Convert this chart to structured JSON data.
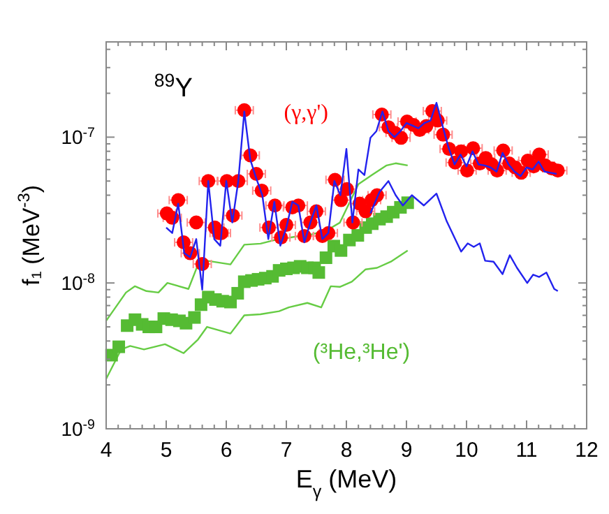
{
  "chart_data": {
    "type": "scatter",
    "xlabel": "E$_{γ}$ (MeV)",
    "ylabel": "f₁ (MeV$^{-3}$)",
    "annotations": [
      "$^{89}$Y"
    ],
    "log": "y",
    "grid": false,
    "xlim": [
      4,
      12
    ],
    "ylim": [
      1e-09,
      4.5e-07
    ],
    "xticks": [
      4,
      {
        "value": 4.2,
        "label": null
      },
      {
        "value": 4.4,
        "label": null
      },
      {
        "value": 4.6,
        "label": null
      },
      {
        "value": 4.8,
        "label": null
      },
      5,
      {
        "value": 5.2,
        "label": null
      },
      {
        "value": 5.4,
        "label": null
      },
      {
        "value": 5.6,
        "label": null
      },
      {
        "value": 5.8,
        "label": null
      },
      6,
      {
        "value": 6.2,
        "label": null
      },
      {
        "value": 6.4,
        "label": null
      },
      {
        "value": 6.6,
        "label": null
      },
      {
        "value": 6.8,
        "label": null
      },
      7,
      {
        "value": 7.2,
        "label": null
      },
      {
        "value": 7.4,
        "label": null
      },
      {
        "value": 7.6,
        "label": null
      },
      {
        "value": 7.8,
        "label": null
      },
      8,
      {
        "value": 8.2,
        "label": null
      },
      {
        "value": 8.4,
        "label": null
      },
      {
        "value": 8.6,
        "label": null
      },
      {
        "value": 8.8,
        "label": null
      },
      9,
      {
        "value": 9.2,
        "label": null
      },
      {
        "value": 9.4,
        "label": null
      },
      {
        "value": 9.6,
        "label": null
      },
      {
        "value": 9.8,
        "label": null
      },
      10,
      {
        "value": 10.2,
        "label": null
      },
      {
        "value": 10.4,
        "label": null
      },
      {
        "value": 10.6,
        "label": null
      },
      {
        "value": 10.8,
        "label": null
      },
      11,
      {
        "value": 11.2,
        "label": null
      },
      {
        "value": 11.4,
        "label": null
      },
      {
        "value": 11.6,
        "label": null
      },
      {
        "value": 11.8,
        "label": null
      },
      12
    ],
    "yticks": [
      {
        "value": 1e-09,
        "label": "10$^{-9}$"
      },
      {
        "value": 2e-09,
        "label": null
      },
      {
        "value": 3e-09,
        "label": null
      },
      {
        "value": 4e-09,
        "label": null
      },
      {
        "value": 5e-09,
        "label": null
      },
      {
        "value": 6e-09,
        "label": null
      },
      {
        "value": 7e-09,
        "label": null
      },
      {
        "value": 8e-09,
        "label": null
      },
      {
        "value": 9e-09,
        "label": null
      },
      {
        "value": 1e-08,
        "label": "10$^{-8}$"
      },
      {
        "value": 2e-08,
        "label": null
      },
      {
        "value": 3e-08,
        "label": null
      },
      {
        "value": 4e-08,
        "label": null
      },
      {
        "value": 5e-08,
        "label": null
      },
      {
        "value": 6e-08,
        "label": null
      },
      {
        "value": 7e-08,
        "label": null
      },
      {
        "value": 8e-08,
        "label": null
      },
      {
        "value": 9e-08,
        "label": null
      },
      {
        "value": 1e-07,
        "label": "10$^{-7}$"
      },
      {
        "value": 2e-07,
        "label": null
      },
      {
        "value": 3e-07,
        "label": null
      },
      {
        "value": 4e-07,
        "label": null
      }
    ],
    "series": [
      {
        "type": "line",
        "color": "#66cc44",
        "x": [
          4.0,
          4.33,
          4.48,
          4.67,
          4.87,
          5.02,
          5.37,
          5.53,
          5.68,
          6.07,
          6.3,
          6.57,
          6.81,
          7.16,
          7.35,
          7.66,
          7.89,
          8.2,
          8.43,
          8.67,
          8.82,
          9.02
        ],
        "values": [
          5.5e-09,
          8.6e-09,
          9.5e-09,
          8.8e-09,
          8.6e-09,
          1e-08,
          9.1e-09,
          1.34e-08,
          1.42e-08,
          1.34e-08,
          1.83e-08,
          1.86e-08,
          1.97e-08,
          2.08e-08,
          2.12e-08,
          2.28e-08,
          2.59e-08,
          4.76e-08,
          5.52e-08,
          6.4e-08,
          6.62e-08,
          6.4e-08
        ]
      },
      {
        "type": "line",
        "color": "#66cc44",
        "x": [
          4.0,
          4.25,
          4.4,
          4.63,
          4.98,
          5.29,
          5.53,
          5.68,
          6.07,
          6.3,
          6.57,
          6.88,
          7.04,
          7.35,
          7.58,
          7.74,
          7.89,
          8.09,
          8.32,
          8.51,
          8.74,
          9.02
        ],
        "values": [
          2.2e-09,
          3.5e-09,
          3.7e-09,
          3.5e-09,
          3.8e-09,
          3.3e-09,
          4.1e-09,
          5e-09,
          4.5e-09,
          6e-09,
          6.1e-09,
          6.4e-09,
          6.8e-09,
          7.3e-09,
          6.8e-09,
          9.5e-09,
          9.4e-09,
          1.02e-08,
          1.24e-08,
          1.27e-08,
          1.4e-08,
          1.67e-08
        ]
      },
      {
        "name": "(³He,³He')",
        "marker": "square",
        "color": "#55bb33",
        "x": [
          4.09,
          4.21,
          4.35,
          4.48,
          4.6,
          4.71,
          4.83,
          4.96,
          5.09,
          5.22,
          5.33,
          5.47,
          5.58,
          5.7,
          5.82,
          5.94,
          6.07,
          6.19,
          6.3,
          6.42,
          6.53,
          6.65,
          6.77,
          6.88,
          7.0,
          7.12,
          7.23,
          7.35,
          7.47,
          7.54,
          7.66,
          7.79,
          7.91,
          8.05,
          8.19,
          8.32,
          8.43,
          8.55,
          8.67,
          8.78,
          8.9,
          9.02
        ],
        "values": [
          3.2e-09,
          3.65e-09,
          5.1e-09,
          5.6e-09,
          5.2e-09,
          5e-09,
          5e-09,
          5.7e-09,
          5.6e-09,
          5.5e-09,
          5.3e-09,
          5.8e-09,
          7.1e-09,
          8e-09,
          7.7e-09,
          7.5e-09,
          7.4e-09,
          8.5e-09,
          1.02e-08,
          1.04e-08,
          1.06e-08,
          1.08e-08,
          1.11e-08,
          1.22e-08,
          1.25e-08,
          1.27e-08,
          1.3e-08,
          1.27e-08,
          1.27e-08,
          1.18e-08,
          1.49e-08,
          1.79e-08,
          1.67e-08,
          1.97e-08,
          2.12e-08,
          2.4e-08,
          2.55e-08,
          2.74e-08,
          2.85e-08,
          3.06e-08,
          3.3e-08,
          3.55e-08
        ]
      },
      {
        "name": "(γ,γ')",
        "marker": "circle",
        "color": "#ff0000",
        "x": [
          5.01,
          5.1,
          5.2,
          5.29,
          5.4,
          5.5,
          5.6,
          5.7,
          5.81,
          5.88,
          5.92,
          6.01,
          6.11,
          6.2,
          6.3,
          6.4,
          6.5,
          6.59,
          6.71,
          6.81,
          6.91,
          7.0,
          7.1,
          7.2,
          7.3,
          7.4,
          7.5,
          7.6,
          7.7,
          7.81,
          7.91,
          8.01,
          8.11,
          8.22,
          8.32,
          8.42,
          8.51,
          8.59,
          8.7,
          8.81,
          8.91,
          9.01,
          9.12,
          9.22,
          9.33,
          9.43,
          9.52,
          9.61,
          9.71,
          9.81,
          9.91,
          10.01,
          10.11,
          10.22,
          10.32,
          10.42,
          10.51,
          10.61,
          10.71,
          10.81,
          10.91,
          11.02,
          11.12,
          11.21,
          11.31,
          11.42,
          11.52
        ],
        "values": [
          3e-08,
          2.8e-08,
          3.7e-08,
          1.9e-08,
          1.6e-08,
          2.6e-08,
          1.35e-08,
          5e-08,
          2.4e-08,
          2.2e-08,
          2.2e-08,
          5e-08,
          2.9e-08,
          5e-08,
          1.53e-07,
          7.5e-08,
          5.6e-08,
          4.3e-08,
          2.4e-08,
          3.4e-08,
          2.05e-08,
          2.5e-08,
          3.3e-08,
          3.4e-08,
          2.1e-08,
          2.6e-08,
          3.1e-08,
          2.1e-08,
          2.2e-08,
          5.1e-08,
          3.7e-08,
          4.4e-08,
          2.6e-08,
          3.5e-08,
          3.1e-08,
          3.7e-08,
          4e-08,
          1.43e-07,
          1.17e-07,
          1.07e-07,
          9.9e-08,
          1.28e-07,
          1.21e-07,
          1.12e-07,
          1.19e-07,
          1.51e-07,
          1.3e-07,
          1.04e-07,
          8.3e-08,
          6.7e-08,
          8e-08,
          5.9e-08,
          8.4e-08,
          6.6e-08,
          7.2e-08,
          6.5e-08,
          5.9e-08,
          8.1e-08,
          6.6e-08,
          6.2e-08,
          5.7e-08,
          6.9e-08,
          6.3e-08,
          7.6e-08,
          6.4e-08,
          6.1e-08,
          5.9e-08
        ],
        "xerrors": [
          0.15,
          0.15,
          0.15,
          0.15,
          0.15,
          0.15,
          0.15,
          0.15,
          0.15,
          0.15,
          0.15,
          0.15,
          0.15,
          0.15,
          0.15,
          0.15,
          0.15,
          0.15,
          0.15,
          0.15,
          0.15,
          0.15,
          0.15,
          0.15,
          0.15,
          0.15,
          0.15,
          0.15,
          0.15,
          0.15,
          0.15,
          0.15,
          0.15,
          0.15,
          0.15,
          0.15,
          0.15,
          0.15,
          0.15,
          0.15,
          0.15,
          0.15,
          0.15,
          0.15,
          0.15,
          0.15,
          0.15,
          0.15,
          0.15,
          0.15,
          0.15,
          0.15,
          0.15,
          0.15,
          0.15,
          0.15,
          0.15,
          0.15,
          0.15,
          0.15,
          0.15,
          0.15,
          0.15,
          0.15,
          0.15,
          0.15,
          0.15
        ]
      },
      {
        "type": "line",
        "color": "#2222ee",
        "x": [
          8.4,
          8.55,
          8.7,
          8.82,
          8.94,
          9.09,
          9.29,
          9.5,
          9.67,
          9.91,
          10.02,
          10.12,
          10.22,
          10.31,
          10.45,
          10.6,
          10.72,
          10.84,
          11.01,
          11.11,
          11.21,
          11.33,
          11.46,
          11.52
        ],
        "values": [
          3e-08,
          4.2e-08,
          5e-08,
          4e-08,
          3.4e-08,
          4e-08,
          3.4e-08,
          4.1e-08,
          2.65e-08,
          1.64e-08,
          1.87e-08,
          1.77e-08,
          1.87e-08,
          1.42e-08,
          1.4e-08,
          1.15e-08,
          1.55e-08,
          1.27e-08,
          1e-08,
          1.14e-08,
          1.1e-08,
          1.18e-08,
          9.1e-09,
          8.8e-09
        ]
      },
      {
        "type": "line",
        "color": "#2222ee",
        "x": [
          5.0,
          5.1,
          5.2,
          5.3,
          5.4,
          5.5,
          5.6,
          5.7,
          5.8,
          5.9,
          6.0,
          6.1,
          6.2,
          6.3,
          6.4,
          6.5,
          6.6,
          6.7,
          6.8,
          6.9,
          7.0,
          7.1,
          7.2,
          7.3,
          7.4,
          7.5,
          7.6,
          7.7,
          7.8,
          7.9,
          8.0,
          8.1,
          8.2,
          8.3,
          8.4,
          8.5,
          8.6,
          8.7,
          8.8,
          8.9,
          9.0,
          9.1,
          9.2,
          9.3,
          9.4,
          9.5,
          9.6,
          9.7,
          9.8,
          9.9,
          10.0,
          10.1,
          10.2,
          10.3,
          10.4,
          10.5,
          10.6,
          10.7,
          10.8,
          10.9,
          11.0,
          11.1,
          11.2,
          11.3,
          11.4,
          11.5
        ],
        "values": [
          2.4e-08,
          2.2e-08,
          3.5e-08,
          1.6e-08,
          1.5e-08,
          2e-08,
          9e-09,
          5e-08,
          2e-08,
          1.8e-08,
          5e-08,
          2.6e-08,
          5e-08,
          1.5e-07,
          7e-08,
          5.2e-08,
          4e-08,
          2e-08,
          3.6e-08,
          1.8e-08,
          2.4e-08,
          3.6e-08,
          3.4e-08,
          1.9e-08,
          2.6e-08,
          3.4e-08,
          2e-08,
          2.2e-08,
          5e-08,
          4e-08,
          8.3e-08,
          2.6e-08,
          6e-08,
          5.5e-08,
          9.9e-08,
          1.1e-07,
          1.5e-07,
          1.1e-07,
          1e-07,
          1.1e-07,
          1.25e-07,
          1.2e-07,
          1.15e-07,
          1.25e-07,
          1.3e-07,
          1.72e-07,
          1.2e-07,
          8.5e-08,
          6.5e-08,
          7.6e-08,
          6.3e-08,
          8e-08,
          6.5e-08,
          6.4e-08,
          6.2e-08,
          5.8e-08,
          7.8e-08,
          6.5e-08,
          5.8e-08,
          5.4e-08,
          6.2e-08,
          6e-08,
          6.8e-08,
          5.8e-08,
          5.7e-08,
          5.6e-08
        ]
      }
    ]
  }
}
